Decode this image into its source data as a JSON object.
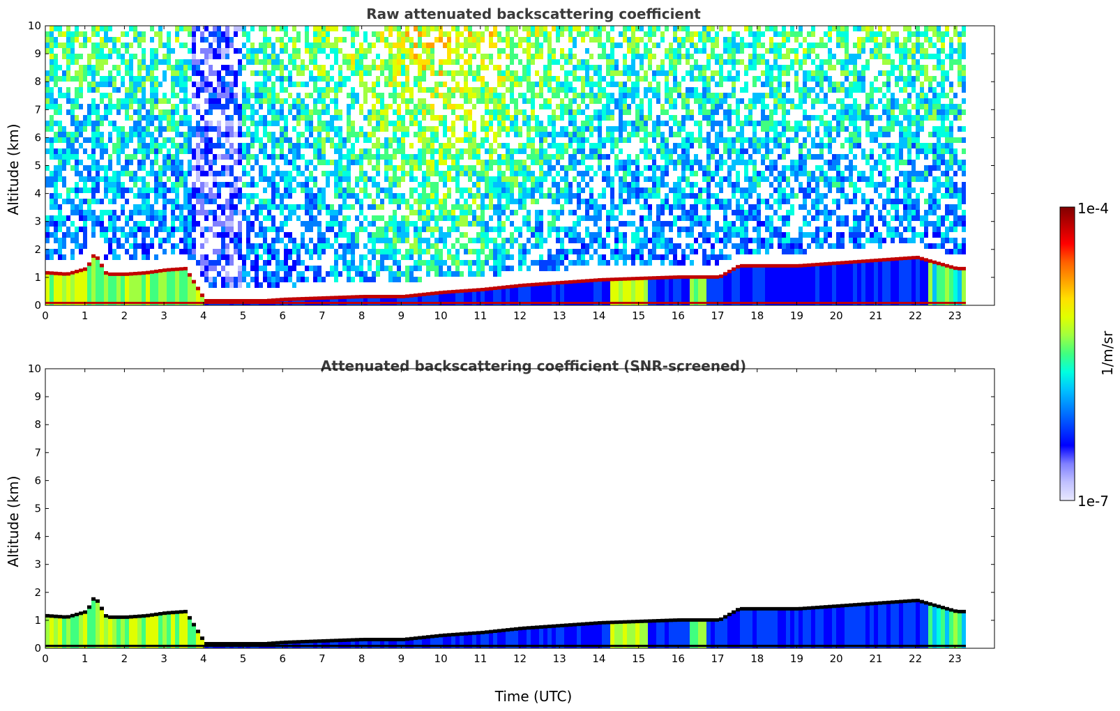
{
  "chart_data": [
    {
      "type": "heatmap",
      "title": "Raw attenuated backscattering coefficient",
      "xlabel": "",
      "ylabel": "Altitude (km)",
      "xlim": [
        0,
        24
      ],
      "ylim": [
        0,
        10
      ],
      "x_ticks": [
        0,
        1,
        2,
        3,
        4,
        5,
        6,
        7,
        8,
        9,
        10,
        11,
        12,
        13,
        14,
        15,
        16,
        17,
        18,
        19,
        20,
        21,
        22,
        23
      ],
      "y_ticks": [
        0,
        1,
        2,
        3,
        4,
        5,
        6,
        7,
        8,
        9,
        10
      ],
      "data_end_time": 23.3,
      "screened": false,
      "layer_top_km": [
        [
          0,
          1.15
        ],
        [
          0.5,
          1.1
        ],
        [
          1.0,
          1.3
        ],
        [
          1.2,
          1.85
        ],
        [
          1.5,
          1.1
        ],
        [
          2.0,
          1.1
        ],
        [
          2.5,
          1.15
        ],
        [
          3.0,
          1.25
        ],
        [
          3.5,
          1.3
        ],
        [
          4.0,
          0.15
        ],
        [
          4.8,
          0.15
        ],
        [
          5.5,
          0.15
        ],
        [
          6.0,
          0.2
        ],
        [
          7.0,
          0.25
        ],
        [
          8.0,
          0.3
        ],
        [
          9.0,
          0.3
        ],
        [
          10.0,
          0.45
        ],
        [
          11.0,
          0.55
        ],
        [
          12.0,
          0.7
        ],
        [
          13.0,
          0.8
        ],
        [
          14.0,
          0.9
        ],
        [
          15.0,
          0.95
        ],
        [
          16.0,
          1.0
        ],
        [
          17.0,
          1.0
        ],
        [
          17.5,
          1.4
        ],
        [
          18.0,
          1.4
        ],
        [
          19.0,
          1.4
        ],
        [
          20.0,
          1.5
        ],
        [
          21.0,
          1.6
        ],
        [
          22.0,
          1.7
        ],
        [
          23.0,
          1.3
        ],
        [
          23.3,
          1.3
        ]
      ]
    },
    {
      "type": "heatmap",
      "title": "Attenuated backscattering coefficient (SNR-screened)",
      "xlabel": "Time (UTC)",
      "ylabel": "Altitude (km)",
      "xlim": [
        0,
        24
      ],
      "ylim": [
        0,
        10
      ],
      "x_ticks": [
        0,
        1,
        2,
        3,
        4,
        5,
        6,
        7,
        8,
        9,
        10,
        11,
        12,
        13,
        14,
        15,
        16,
        17,
        18,
        19,
        20,
        21,
        22,
        23
      ],
      "y_ticks": [
        0,
        1,
        2,
        3,
        4,
        5,
        6,
        7,
        8,
        9,
        10
      ],
      "data_end_time": 23.3,
      "screened": true,
      "layer_top_km": [
        [
          0,
          1.15
        ],
        [
          0.5,
          1.1
        ],
        [
          1.0,
          1.3
        ],
        [
          1.2,
          1.85
        ],
        [
          1.5,
          1.1
        ],
        [
          2.0,
          1.1
        ],
        [
          2.5,
          1.15
        ],
        [
          3.0,
          1.25
        ],
        [
          3.5,
          1.3
        ],
        [
          4.0,
          0.15
        ],
        [
          4.8,
          0.15
        ],
        [
          5.5,
          0.15
        ],
        [
          6.0,
          0.2
        ],
        [
          7.0,
          0.25
        ],
        [
          8.0,
          0.3
        ],
        [
          9.0,
          0.3
        ],
        [
          10.0,
          0.45
        ],
        [
          11.0,
          0.55
        ],
        [
          12.0,
          0.7
        ],
        [
          13.0,
          0.8
        ],
        [
          14.0,
          0.9
        ],
        [
          15.0,
          0.95
        ],
        [
          16.0,
          1.0
        ],
        [
          17.0,
          1.0
        ],
        [
          17.5,
          1.4
        ],
        [
          18.0,
          1.4
        ],
        [
          19.0,
          1.4
        ],
        [
          20.0,
          1.5
        ],
        [
          21.0,
          1.6
        ],
        [
          22.0,
          1.7
        ],
        [
          23.0,
          1.3
        ],
        [
          23.3,
          1.3
        ]
      ]
    }
  ],
  "colorbar": {
    "max_label": "1e-4",
    "min_label": "1e-7",
    "unit_label": "1/m/sr",
    "scale": "log",
    "colors": [
      "#e8e8ff",
      "#c0c0ff",
      "#8080ff",
      "#0000ff",
      "#0040ff",
      "#0080ff",
      "#00c0ff",
      "#00ffe0",
      "#40ff80",
      "#a0ff40",
      "#e0ff00",
      "#ffe000",
      "#ffa000",
      "#ff6000",
      "#ff0000",
      "#c00000",
      "#800000"
    ]
  }
}
